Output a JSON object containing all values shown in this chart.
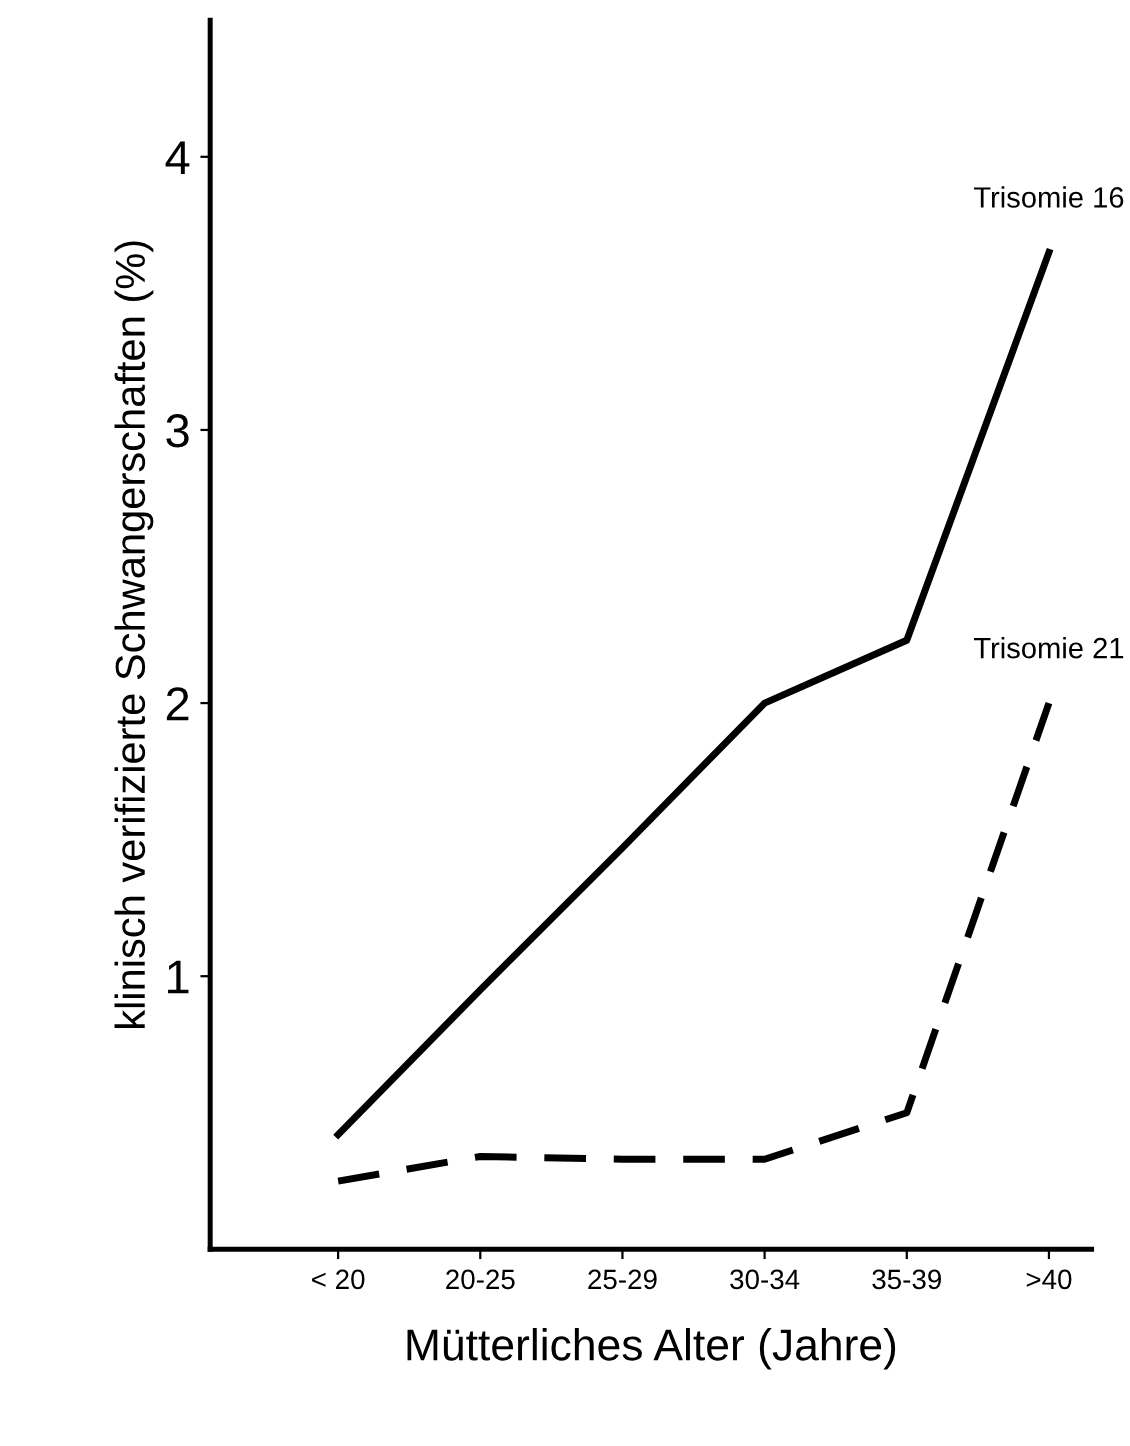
{
  "chart_data": {
    "type": "line",
    "xlabel": "Mütterliches Alter (Jahre)",
    "ylabel": "klinisch verifizierte Schwangerschaften (%)",
    "categories": [
      "< 20",
      "20-25",
      "25-29",
      "30-34",
      "35-39",
      ">40"
    ],
    "series": [
      {
        "name": "Trisomie 16",
        "color": "#000000",
        "line_style": "solid",
        "values": [
          0.42,
          0.95,
          1.47,
          2.0,
          2.23,
          3.65
        ]
      },
      {
        "name": "Trisomie 21",
        "color": "#000000",
        "line_style": "dashed",
        "values": [
          0.25,
          0.34,
          0.33,
          0.33,
          0.5,
          2.0
        ]
      }
    ],
    "ylim": [
      0,
      4.5
    ],
    "yticks": [
      1,
      2,
      3,
      4
    ],
    "grid": false,
    "legend": false,
    "marker": "none"
  }
}
